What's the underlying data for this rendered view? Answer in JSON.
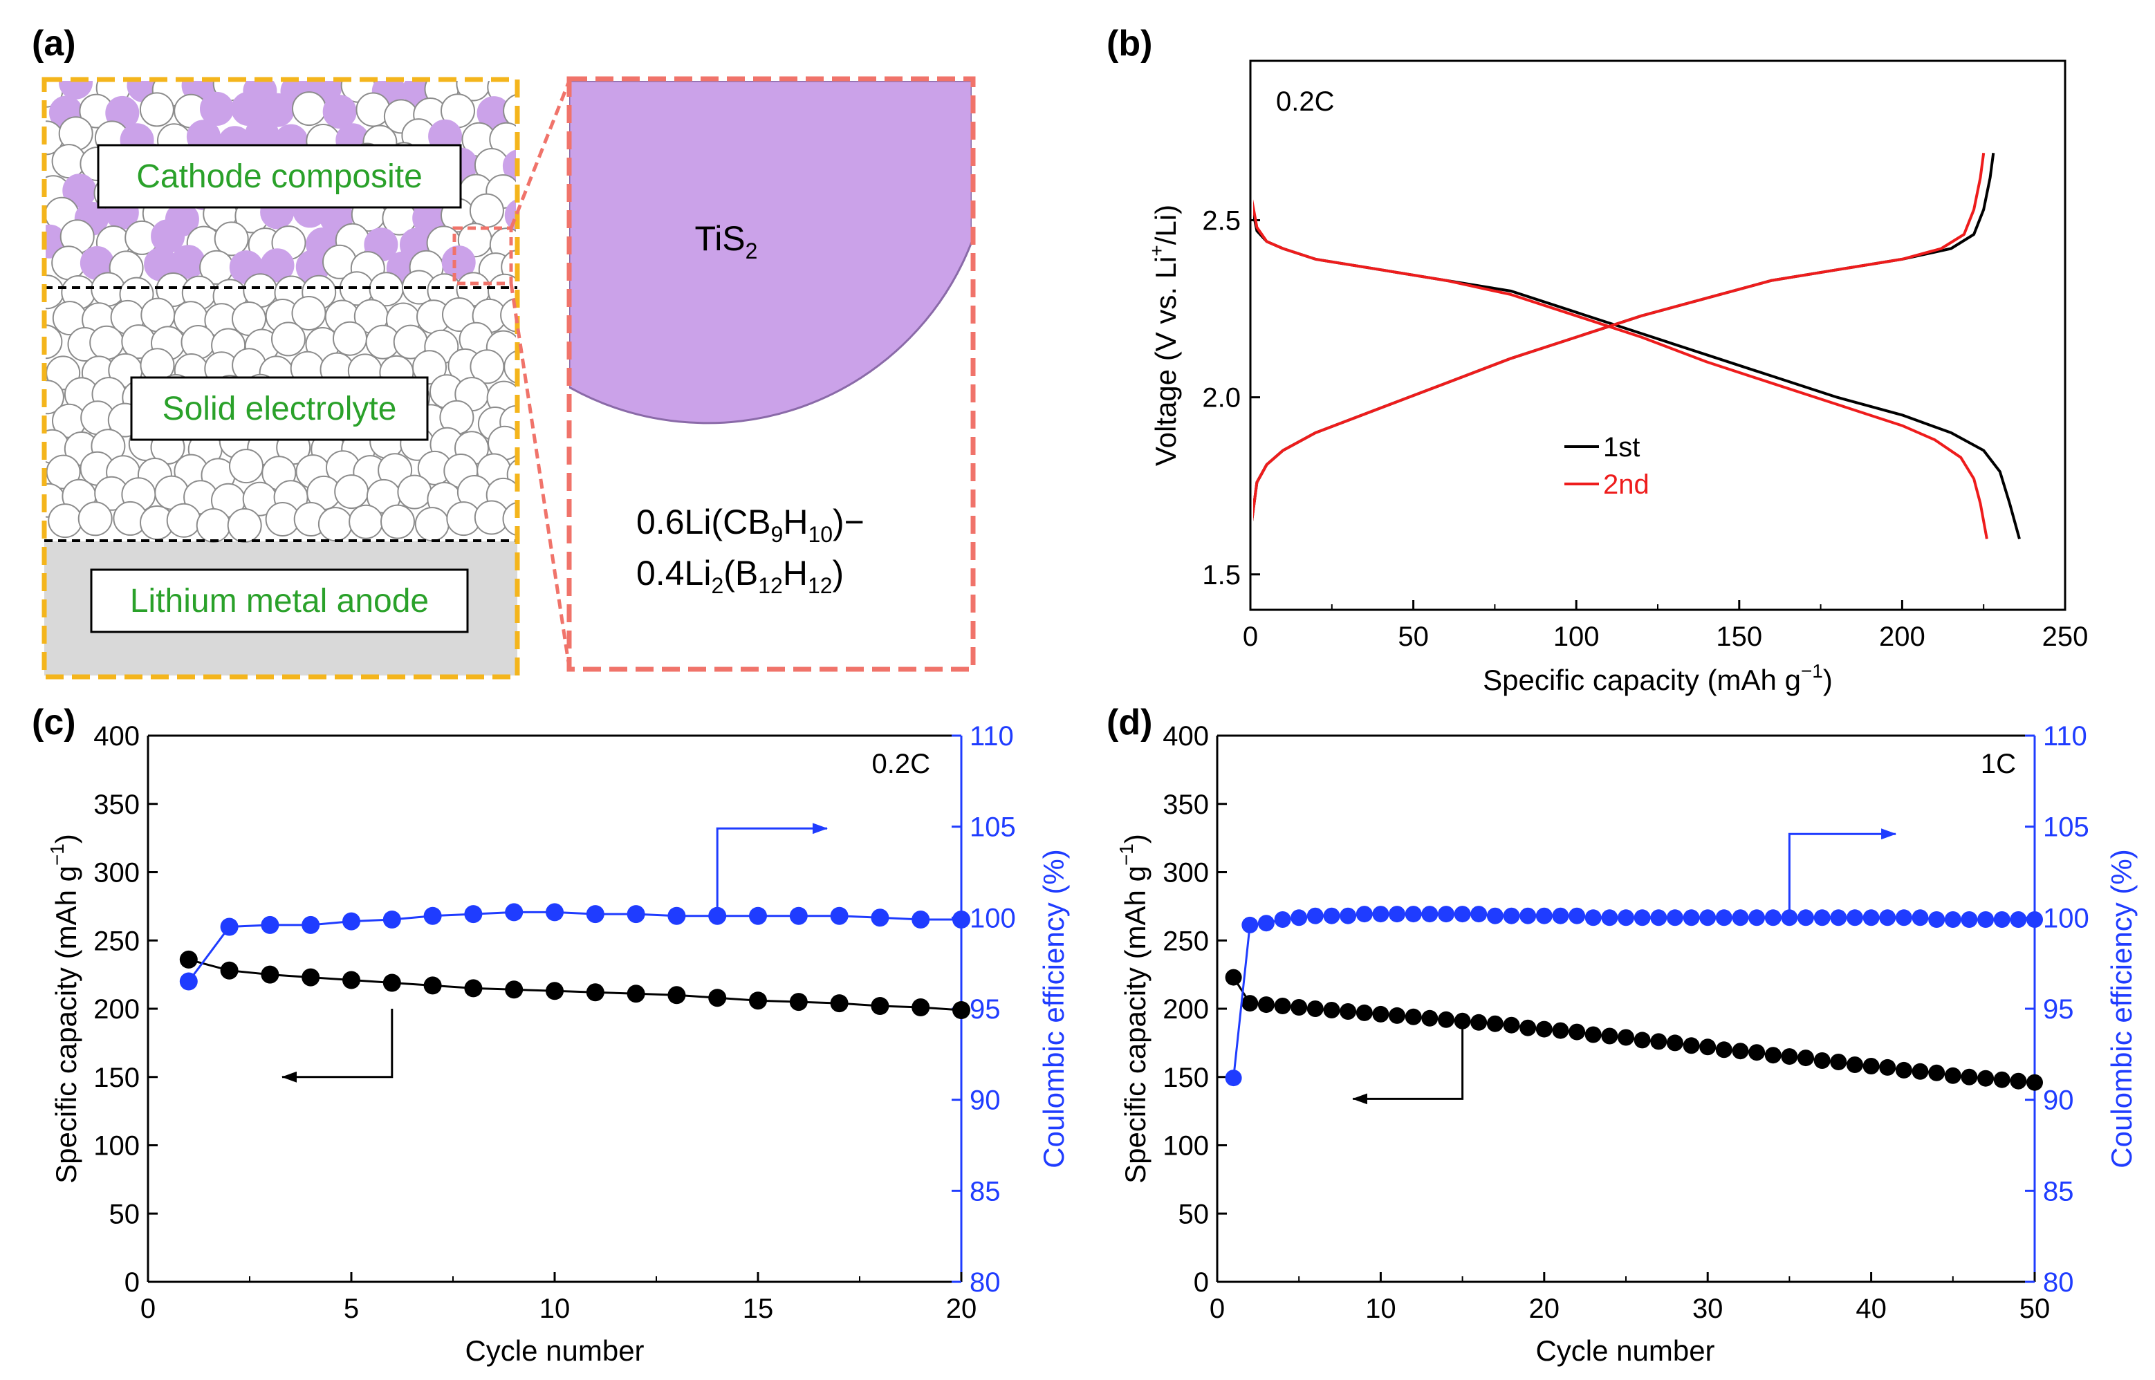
{
  "panel_labels": {
    "a": "(a)",
    "b": "(b)",
    "c": "(c)",
    "d": "(d)"
  },
  "colors": {
    "black": "#000000",
    "red": "#ee1c1c",
    "blue": "#1f3cff",
    "purple": "#cba2e9",
    "purple_edge": "#8a6aa8",
    "yellow": "#f4b51c",
    "salmon": "#f0736a",
    "label_green": "#2aa12a",
    "anode_grey": "#d9d9d9"
  },
  "schematic": {
    "cathode_label": "Cathode composite",
    "electrolyte_label": "Solid electrolyte",
    "anode_label": "Lithium metal anode",
    "zoom_material": {
      "base": "TiS",
      "sub": "2"
    },
    "electrolyte_formula": {
      "line1": [
        {
          "t": "0.6Li(CB",
          "s": false
        },
        {
          "t": "9",
          "s": true
        },
        {
          "t": "H",
          "s": false
        },
        {
          "t": "10",
          "s": true
        },
        {
          "t": ")−",
          "s": false
        }
      ],
      "line2": [
        {
          "t": "0.4Li",
          "s": false
        },
        {
          "t": "2",
          "s": true
        },
        {
          "t": "(B",
          "s": false
        },
        {
          "t": "12",
          "s": true
        },
        {
          "t": "H",
          "s": false
        },
        {
          "t": "12",
          "s": true
        },
        {
          "t": ")",
          "s": false
        }
      ]
    }
  },
  "chart_data": [
    {
      "id": "b",
      "type": "line",
      "title": "",
      "annotation": "0.2C",
      "xlabel": "Specific capacity (mAh g−1)",
      "xlabel_parts": {
        "text": "Specific capacity (mAh g",
        "sup": "−1",
        "close": ")"
      },
      "ylabel_parts": {
        "pre": "Voltage (V vs. Li",
        "sup": "+",
        "post": "/Li)"
      },
      "xlim": [
        0,
        250
      ],
      "ylim": [
        1.4,
        2.95
      ],
      "xticks": [
        0,
        50,
        100,
        150,
        200,
        250
      ],
      "yticks": [
        1.5,
        2.0,
        2.5
      ],
      "ytick_labels": [
        "1.5",
        "2.0",
        "2.5"
      ],
      "legend": {
        "position": "center",
        "entries": [
          "1st",
          "2nd"
        ]
      },
      "series": [
        {
          "name": "1st discharge",
          "legend": "1st",
          "color": "black",
          "points": [
            [
              0,
              2.56
            ],
            [
              2,
              2.47
            ],
            [
              5,
              2.44
            ],
            [
              10,
              2.42
            ],
            [
              20,
              2.39
            ],
            [
              40,
              2.36
            ],
            [
              60,
              2.33
            ],
            [
              80,
              2.3
            ],
            [
              100,
              2.24
            ],
            [
              120,
              2.18
            ],
            [
              140,
              2.12
            ],
            [
              160,
              2.06
            ],
            [
              180,
              2.0
            ],
            [
              200,
              1.95
            ],
            [
              215,
              1.9
            ],
            [
              225,
              1.85
            ],
            [
              230,
              1.79
            ],
            [
              233,
              1.7
            ],
            [
              236,
              1.6
            ]
          ]
        },
        {
          "name": "1st charge",
          "legend": "1st",
          "color": "black",
          "points": [
            [
              0,
              1.62
            ],
            [
              2,
              1.76
            ],
            [
              5,
              1.81
            ],
            [
              10,
              1.85
            ],
            [
              20,
              1.9
            ],
            [
              40,
              1.97
            ],
            [
              60,
              2.04
            ],
            [
              80,
              2.11
            ],
            [
              100,
              2.17
            ],
            [
              120,
              2.23
            ],
            [
              140,
              2.28
            ],
            [
              160,
              2.33
            ],
            [
              180,
              2.36
            ],
            [
              200,
              2.39
            ],
            [
              215,
              2.42
            ],
            [
              222,
              2.46
            ],
            [
              225,
              2.53
            ],
            [
              227,
              2.62
            ],
            [
              228,
              2.69
            ]
          ]
        },
        {
          "name": "2nd discharge",
          "legend": "2nd",
          "color": "red",
          "points": [
            [
              0,
              2.58
            ],
            [
              2,
              2.48
            ],
            [
              5,
              2.44
            ],
            [
              10,
              2.42
            ],
            [
              20,
              2.39
            ],
            [
              40,
              2.36
            ],
            [
              60,
              2.33
            ],
            [
              80,
              2.29
            ],
            [
              100,
              2.23
            ],
            [
              120,
              2.17
            ],
            [
              140,
              2.1
            ],
            [
              160,
              2.04
            ],
            [
              180,
              1.98
            ],
            [
              200,
              1.92
            ],
            [
              210,
              1.88
            ],
            [
              218,
              1.83
            ],
            [
              222,
              1.77
            ],
            [
              224,
              1.7
            ],
            [
              226,
              1.6
            ]
          ]
        },
        {
          "name": "2nd charge",
          "legend": "2nd",
          "color": "red",
          "points": [
            [
              0,
              1.62
            ],
            [
              2,
              1.76
            ],
            [
              5,
              1.81
            ],
            [
              10,
              1.85
            ],
            [
              20,
              1.9
            ],
            [
              40,
              1.97
            ],
            [
              60,
              2.04
            ],
            [
              80,
              2.11
            ],
            [
              100,
              2.17
            ],
            [
              120,
              2.23
            ],
            [
              140,
              2.28
            ],
            [
              160,
              2.33
            ],
            [
              180,
              2.36
            ],
            [
              200,
              2.39
            ],
            [
              212,
              2.42
            ],
            [
              219,
              2.46
            ],
            [
              222,
              2.53
            ],
            [
              224,
              2.62
            ],
            [
              225,
              2.69
            ]
          ]
        }
      ]
    },
    {
      "id": "c",
      "type": "scatter",
      "title": "",
      "annotation": "0.2C",
      "xlabel": "Cycle number",
      "ylabel_left": "Specific capacity (mAh g−1)",
      "ylabel_left_parts": {
        "text": "Specific capacity (mAh g",
        "sup": "−1",
        "close": ")"
      },
      "ylabel_right": "Coulombic efficiency (%)",
      "xlim": [
        0,
        20
      ],
      "ylim_left": [
        0,
        400
      ],
      "ylim_right": [
        80,
        110
      ],
      "xticks": [
        0,
        5,
        10,
        15,
        20
      ],
      "yticks_left": [
        0,
        50,
        100,
        150,
        200,
        250,
        300,
        350,
        400
      ],
      "yticks_right": [
        80,
        85,
        90,
        95,
        100,
        105,
        110
      ],
      "series": [
        {
          "name": "Specific capacity",
          "axis": "left",
          "color": "black",
          "x": [
            1,
            2,
            3,
            4,
            5,
            6,
            7,
            8,
            9,
            10,
            11,
            12,
            13,
            14,
            15,
            16,
            17,
            18,
            19,
            20
          ],
          "y": [
            236,
            228,
            225,
            223,
            221,
            219,
            217,
            215,
            214,
            213,
            212,
            211,
            210,
            208,
            206,
            205,
            204,
            202,
            201,
            199
          ]
        },
        {
          "name": "Coulombic efficiency",
          "axis": "right",
          "color": "blue",
          "x": [
            1,
            2,
            3,
            4,
            5,
            6,
            7,
            8,
            9,
            10,
            11,
            12,
            13,
            14,
            15,
            16,
            17,
            18,
            19,
            20
          ],
          "y": [
            96.5,
            99.5,
            99.6,
            99.6,
            99.8,
            99.9,
            100.1,
            100.2,
            100.3,
            100.3,
            100.2,
            100.2,
            100.1,
            100.1,
            100.1,
            100.1,
            100.1,
            100.0,
            99.9,
            99.9
          ]
        }
      ],
      "arrows": [
        {
          "axis": "left",
          "from_x": 6.0,
          "from_y": 200,
          "to_x": 6.0,
          "to_y": 150,
          "head_x": 3.3
        },
        {
          "axis": "right",
          "from_x": 14.0,
          "from_y": 100.3,
          "to_x": 14.0,
          "to_y": 104.9,
          "head_x": 16.7
        }
      ]
    },
    {
      "id": "d",
      "type": "scatter",
      "title": "",
      "annotation": "1C",
      "xlabel": "Cycle number",
      "ylabel_left": "Specific capacity (mAh g−1)",
      "ylabel_left_parts": {
        "text": "Specific capacity (mAh g",
        "sup": "−1",
        "close": ")"
      },
      "ylabel_right": "Coulombic efficiency (%)",
      "xlim": [
        0,
        50
      ],
      "ylim_left": [
        0,
        400
      ],
      "ylim_right": [
        80,
        110
      ],
      "xticks": [
        0,
        10,
        20,
        30,
        40,
        50
      ],
      "yticks_left": [
        0,
        50,
        100,
        150,
        200,
        250,
        300,
        350,
        400
      ],
      "yticks_right": [
        80,
        85,
        90,
        95,
        100,
        105,
        110
      ],
      "series": [
        {
          "name": "Specific capacity",
          "axis": "left",
          "color": "black",
          "x": [
            1,
            2,
            3,
            4,
            5,
            6,
            7,
            8,
            9,
            10,
            11,
            12,
            13,
            14,
            15,
            16,
            17,
            18,
            19,
            20,
            21,
            22,
            23,
            24,
            25,
            26,
            27,
            28,
            29,
            30,
            31,
            32,
            33,
            34,
            35,
            36,
            37,
            38,
            39,
            40,
            41,
            42,
            43,
            44,
            45,
            46,
            47,
            48,
            49,
            50
          ],
          "y": [
            223,
            204,
            203,
            202,
            201,
            200,
            199,
            198,
            197,
            196,
            195,
            194,
            193,
            192,
            191,
            190,
            189,
            188,
            186,
            185,
            184,
            183,
            181,
            180,
            179,
            177,
            176,
            175,
            173,
            172,
            170,
            169,
            168,
            166,
            165,
            164,
            162,
            161,
            159,
            158,
            157,
            155,
            154,
            153,
            151,
            150,
            149,
            148,
            147,
            146
          ]
        },
        {
          "name": "Coulombic efficiency",
          "axis": "right",
          "color": "blue",
          "x": [
            1,
            2,
            3,
            4,
            5,
            6,
            7,
            8,
            9,
            10,
            11,
            12,
            13,
            14,
            15,
            16,
            17,
            18,
            19,
            20,
            21,
            22,
            23,
            24,
            25,
            26,
            27,
            28,
            29,
            30,
            31,
            32,
            33,
            34,
            35,
            36,
            37,
            38,
            39,
            40,
            41,
            42,
            43,
            44,
            45,
            46,
            47,
            48,
            49,
            50
          ],
          "y": [
            91.2,
            99.6,
            99.7,
            99.9,
            100.0,
            100.1,
            100.1,
            100.1,
            100.2,
            100.2,
            100.2,
            100.2,
            100.2,
            100.2,
            100.2,
            100.2,
            100.1,
            100.1,
            100.1,
            100.1,
            100.1,
            100.1,
            100.0,
            100.0,
            100.0,
            100.0,
            100.0,
            100.0,
            100.0,
            100.0,
            100.0,
            100.0,
            100.0,
            100.0,
            100.0,
            100.0,
            100.0,
            100.0,
            100.0,
            100.0,
            100.0,
            100.0,
            100.0,
            99.9,
            99.9,
            99.9,
            99.9,
            99.9,
            99.9,
            99.9
          ]
        }
      ],
      "arrows": [
        {
          "axis": "left",
          "from_x": 15.0,
          "from_y": 195,
          "to_x": 15.0,
          "to_y": 134,
          "head_x": 8.3
        },
        {
          "axis": "right",
          "from_x": 35.0,
          "from_y": 100.0,
          "to_x": 35.0,
          "to_y": 104.6,
          "head_x": 41.5
        }
      ]
    }
  ]
}
